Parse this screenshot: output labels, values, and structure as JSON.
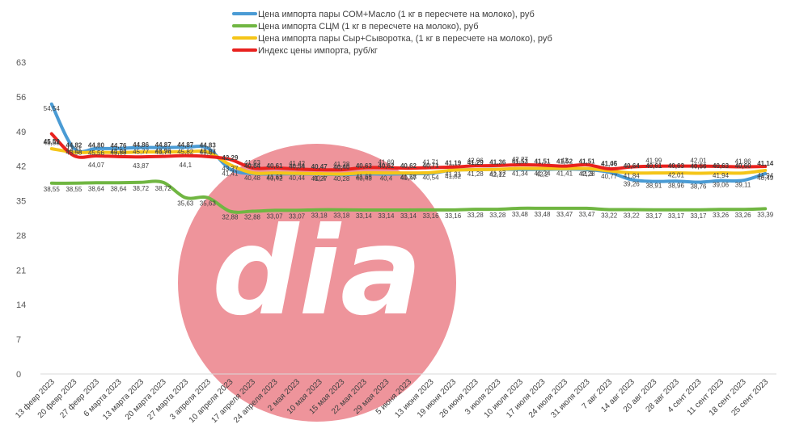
{
  "chart_data": {
    "type": "line",
    "ylim": [
      0,
      63
    ],
    "yticks": [
      0,
      7,
      14,
      21,
      28,
      35,
      42,
      49,
      56,
      63
    ],
    "grid": false,
    "legend_position": "top",
    "watermark": "dia",
    "x": [
      "13 февр 2023",
      "20 февр 2023",
      "27 февр 2023",
      "6 марта 2023",
      "13 марта 2023",
      "20 марта 2023",
      "27 марта 2023",
      "3 апреля 2023",
      "10 апреля 2023",
      "17 апреля 2023",
      "24 апреля 2023",
      "2 мая 2023",
      "10 мая 2023",
      "15 мая 2023",
      "22 мая 2023",
      "29 мая 2023",
      "5 июня 2023",
      "13 июня 2023",
      "19 июня 2023",
      "26 июня 2023",
      "3 июля 2023",
      "10 июля 2023",
      "17 июля 2023",
      "24 июля 2023",
      "31 июля 2023",
      "7 авг 2023",
      "14 авг 2023",
      "20 авг 2023",
      "28 авг 2023",
      "4 сент 2023",
      "11 сент 2023",
      "18 сент 2023",
      "25 сент 2023"
    ],
    "series": [
      {
        "name": "Цена импорта пары СОМ+Масло  (1 кг в пересчете на молоко), руб",
        "color": "#4A9BD4",
        "values": [
          54.54,
          45.58,
          45.56,
          45.58,
          45.77,
          45.74,
          45.82,
          45.64,
          41.41,
          40.48,
          40.42,
          40.44,
          40.4,
          40.28,
          40.43,
          40.4,
          40.47,
          40.54,
          41.21,
          41.28,
          41.37,
          41.34,
          41.34,
          41.41,
          41.3,
          40.77,
          39.26,
          38.91,
          38.96,
          38.76,
          39.06,
          39.11,
          40.49
        ],
        "labels": [
          "54,54",
          "45,58",
          "45,56",
          "45,58",
          "45,77",
          "45,74",
          "45,82",
          "45,64",
          "41,41",
          "40,48",
          "40,42",
          "40,44",
          "40,4",
          "40,28",
          "40,43",
          "40,4",
          "40,47",
          "40,54",
          "41,21",
          "41,28",
          "41,37",
          "41,34",
          "41,34",
          "41,41",
          "41,3",
          "40,77",
          "39,26",
          "38,91",
          "38,96",
          "38,76",
          "39,06",
          "39,11",
          "40,49"
        ]
      },
      {
        "name": "Цена импорта СЦМ (1 кг в пересчете на молоко), руб",
        "color": "#70B642",
        "values": [
          38.55,
          38.55,
          38.64,
          38.64,
          38.72,
          38.72,
          35.63,
          35.63,
          32.88,
          32.88,
          33.07,
          33.07,
          33.18,
          33.18,
          33.14,
          33.14,
          33.14,
          33.16,
          33.16,
          33.28,
          33.28,
          33.48,
          33.48,
          33.47,
          33.47,
          33.22,
          33.22,
          33.17,
          33.17,
          33.17,
          33.26,
          33.26,
          33.39
        ],
        "labels": [
          "38,55",
          "38,55",
          "38,64",
          "38,64",
          "38,72",
          "38,72",
          "35,63",
          "35,63",
          "32,88",
          "32,88",
          "33,07",
          "33,07",
          "33,18",
          "33,18",
          "33,14",
          "33,14",
          "33,14",
          "33,16",
          "33,16",
          "33,28",
          "33,28",
          "33,48",
          "33,48",
          "33,47",
          "33,47",
          "33,22",
          "33,22",
          "33,17",
          "33,17",
          "33,17",
          "33,26",
          "33,26",
          "33,39"
        ]
      },
      {
        "name": "Цена импорта пары Сыр+Сыворотка, (1 кг в пересчете на молоко), руб",
        "color": "#F5C518",
        "values": [
          45.52,
          44.82,
          44.8,
          44.76,
          44.86,
          44.87,
          44.87,
          44.83,
          42.29,
          40.64,
          40.61,
          40.54,
          40.47,
          40.4,
          40.63,
          40.62,
          40.62,
          40.71,
          41.19,
          41.29,
          41.36,
          41.53,
          41.51,
          41.52,
          41.51,
          41.06,
          40.64,
          40.61,
          40.63,
          40.56,
          40.63,
          40.6,
          41.14
        ],
        "labels": [
          "45,52",
          "44,82",
          "44,80",
          "44,76",
          "44,86",
          "44,87",
          "44,87",
          "44,83",
          "42,29",
          "40,64",
          "40,61",
          "40,54",
          "40,47",
          "40,40",
          "40,63",
          "40,62",
          "40,62",
          "40,71",
          "41,19",
          "41,29",
          "41,36",
          "41,53",
          "41,51",
          "41,52",
          "41,51",
          "41,06",
          "40,64",
          "40,61",
          "40,63",
          "40,56",
          "40,63",
          "40,60",
          "41,14"
        ]
      },
      {
        "name": "Индекс цены импорта, руб/кг",
        "color": "#E8211E",
        "values": [
          48.53,
          44.11,
          44.07,
          43.93,
          43.87,
          43.96,
          44.1,
          43.93,
          43.37,
          41.63,
          41.63,
          41.42,
          41.27,
          41.28,
          41.68,
          41.69,
          41.58,
          41.71,
          41.82,
          42.06,
          42.12,
          42.27,
          42.2,
          42.0,
          42.28,
          41.45,
          41.84,
          41.99,
          42.01,
          42.01,
          41.94,
          41.86,
          41.94
        ],
        "labels": [
          "48,53",
          "44,11",
          "44,07",
          "43,93",
          "43,87",
          "43,96",
          "44,1",
          "43,93",
          "43,37",
          "41,63",
          "41,63",
          "41,42",
          "41,27",
          "41,28",
          "41,68",
          "41,69",
          "41,58",
          "41,71",
          "41,82",
          "42,06",
          "42,12",
          "42,27",
          "42,2",
          "42",
          "42,28",
          "41,45",
          "41,84",
          "41,99",
          "42,01",
          "42,01",
          "41,94",
          "41,86",
          "41,94"
        ]
      }
    ]
  }
}
